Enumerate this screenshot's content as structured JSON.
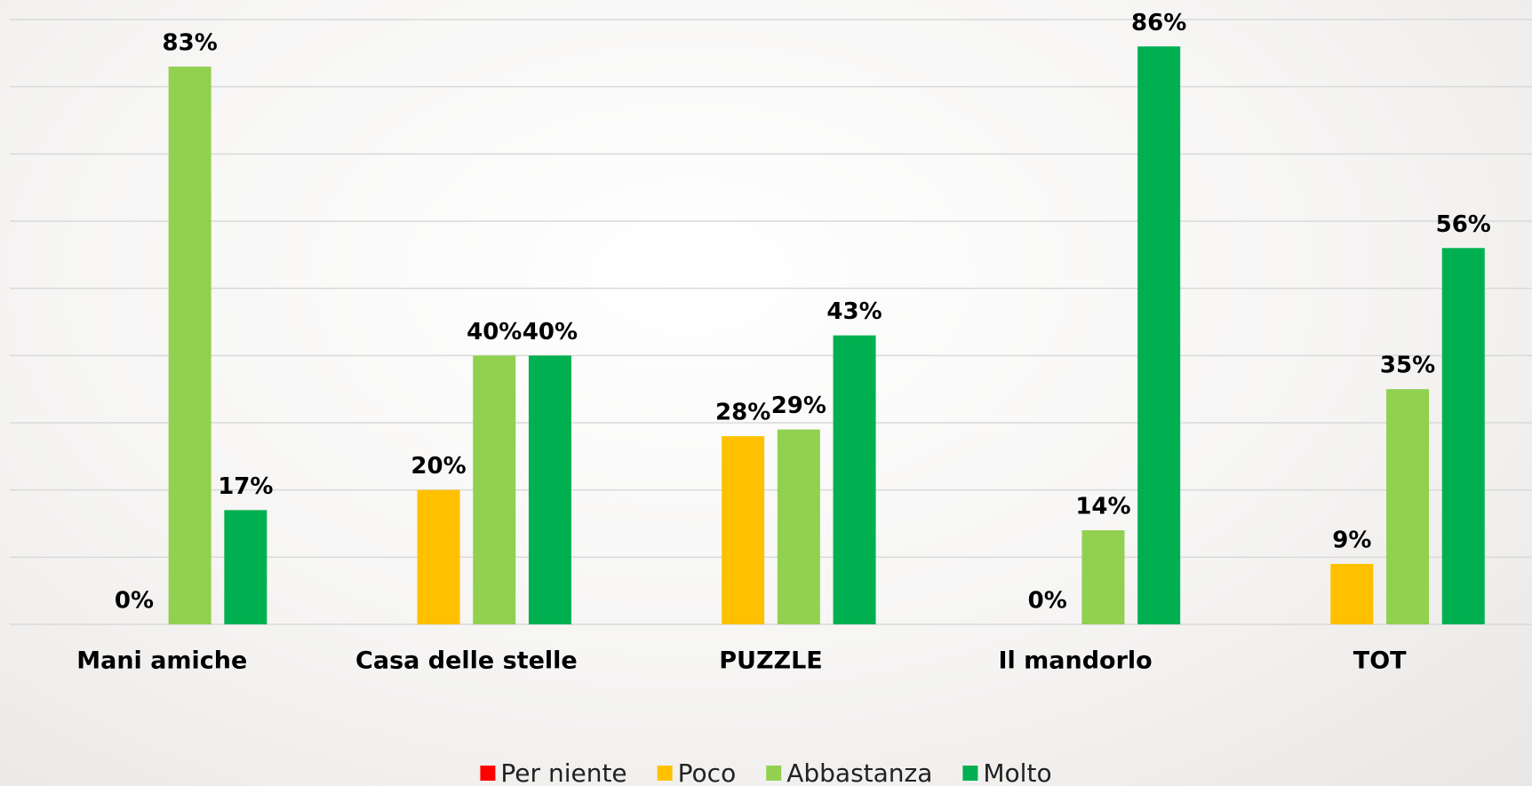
{
  "chart_data": {
    "type": "bar",
    "categories": [
      "Mani amiche",
      "Casa delle stelle",
      "PUZZLE",
      "Il mandorlo",
      "TOT"
    ],
    "series": [
      {
        "name": "Per niente",
        "color": "#ff0000",
        "values": [
          null,
          null,
          null,
          null,
          null
        ],
        "value_labels": [
          null,
          null,
          null,
          null,
          null
        ]
      },
      {
        "name": "Poco",
        "color": "#ffc000",
        "values": [
          0,
          20,
          28,
          0,
          9
        ],
        "value_labels": [
          "0%",
          "20%",
          "28%",
          "0%",
          "9%"
        ]
      },
      {
        "name": "Abbastanza",
        "color": "#92d050",
        "values": [
          83,
          40,
          29,
          14,
          35
        ],
        "value_labels": [
          "83%",
          "40%",
          "29%",
          "14%",
          "35%"
        ]
      },
      {
        "name": "Molto",
        "color": "#00b050",
        "values": [
          17,
          40,
          43,
          86,
          56
        ],
        "value_labels": [
          "17%",
          "40%",
          "43%",
          "86%",
          "56%"
        ]
      }
    ],
    "ylim": [
      0,
      90
    ],
    "yticks": [
      0,
      10,
      20,
      30,
      40,
      50,
      60,
      70,
      80,
      90
    ],
    "grid": true,
    "legend": "bottom"
  }
}
